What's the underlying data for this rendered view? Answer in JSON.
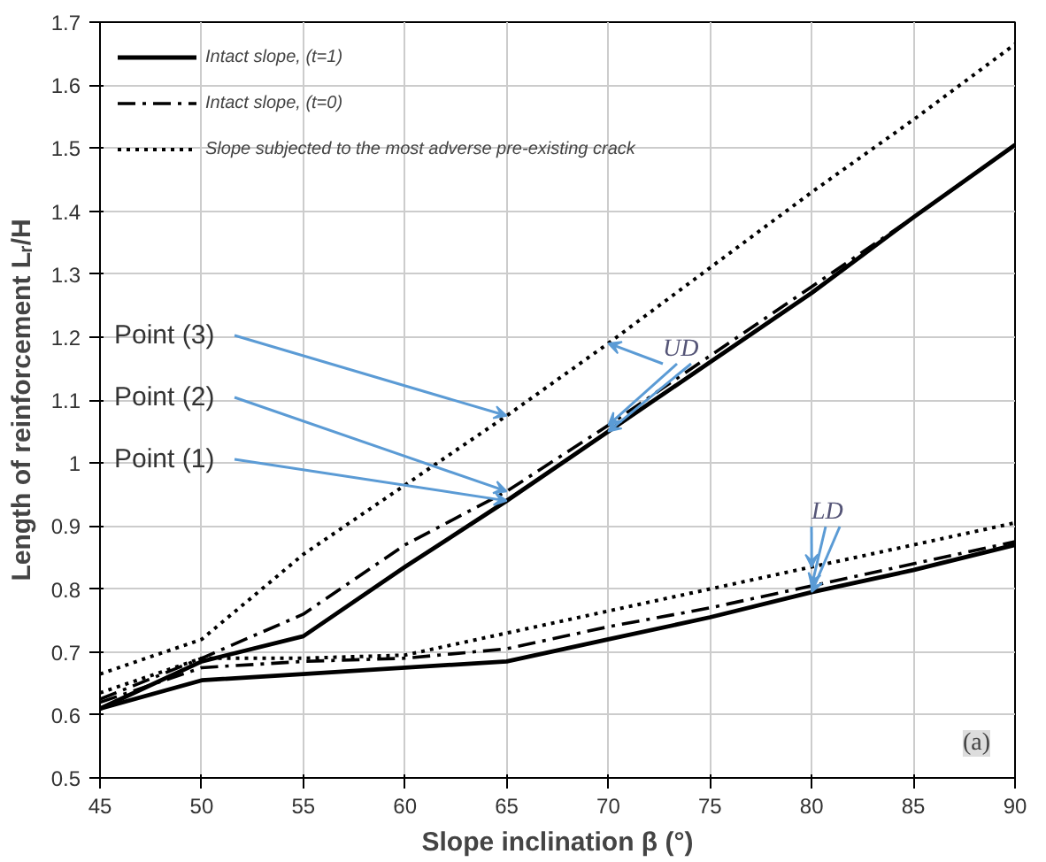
{
  "chart_data": {
    "type": "line",
    "xlabel": "Slope inclination β (°)",
    "ylabel": "Length of reinforcement Lᵣ/H",
    "x": [
      45,
      50,
      55,
      60,
      65,
      70,
      75,
      80,
      85,
      90
    ],
    "series": [
      {
        "name": "Intact slope, (t=1)",
        "color": "#000000",
        "line_style": "solid",
        "values": [
          0.61,
          0.685,
          0.725,
          0.835,
          0.94,
          1.05,
          1.16,
          1.27,
          1.39,
          1.505
        ]
      },
      {
        "name": "Intact slope, (t=0)",
        "color": "#000000",
        "line_style": "dashed",
        "values": [
          0.625,
          0.69,
          0.76,
          0.87,
          0.955,
          1.06,
          1.17,
          1.28,
          1.39,
          1.505
        ]
      },
      {
        "name": "Slope subjected to the most adverse pre-existing crack",
        "color": "#000000",
        "line_style": "dotted",
        "values": [
          0.665,
          0.72,
          0.855,
          0.965,
          1.075,
          1.19,
          1.31,
          1.43,
          1.545,
          1.665
        ]
      },
      {
        "color": "#000000",
        "line_style": "solid",
        "values": [
          0.61,
          0.655,
          0.665,
          0.675,
          0.685,
          0.72,
          0.755,
          0.795,
          0.83,
          0.87
        ]
      },
      {
        "color": "#000000",
        "line_style": "dashed",
        "values": [
          0.62,
          0.675,
          0.685,
          0.69,
          0.705,
          0.74,
          0.77,
          0.805,
          0.84,
          0.875
        ]
      },
      {
        "color": "#000000",
        "line_style": "dotted",
        "values": [
          0.635,
          0.69,
          0.69,
          0.695,
          0.73,
          0.765,
          0.8,
          0.835,
          0.87,
          0.905
        ]
      }
    ],
    "xlim": [
      45,
      90
    ],
    "xticks": [
      45,
      50,
      55,
      60,
      65,
      70,
      75,
      80,
      85,
      90
    ],
    "ylim": [
      0.5,
      1.7
    ],
    "yticks": [
      0.5,
      0.6,
      0.7,
      0.8,
      0.9,
      1,
      1.1,
      1.2,
      1.3,
      1.4,
      1.5,
      1.6,
      1.7
    ],
    "grid": true,
    "legend": "top left",
    "annotations": [
      {
        "text": "Point (3)",
        "x": 65,
        "y": 1.075
      },
      {
        "text": "Point (2)",
        "x": 65,
        "y": 0.955
      },
      {
        "text": "Point (1)",
        "x": 65,
        "y": 0.94
      },
      {
        "text": "UD",
        "x": 70,
        "y": 1.19
      },
      {
        "text": "LD",
        "x": 80,
        "y": 0.835
      },
      "(a)"
    ]
  }
}
